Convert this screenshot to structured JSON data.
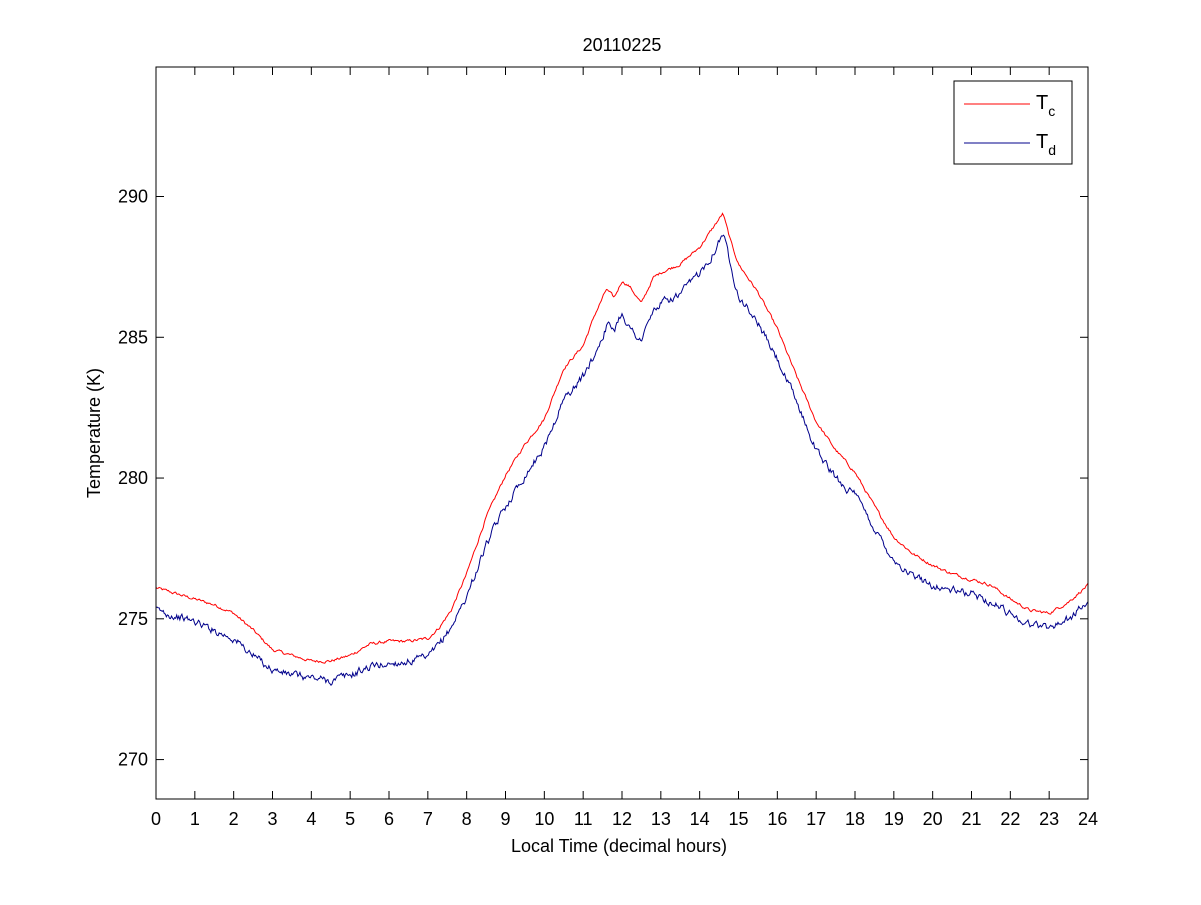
{
  "chart_data": {
    "type": "line",
    "title": "20110225",
    "xlabel": "Local Time (decimal hours)",
    "ylabel": "Temperature (K)",
    "xlim": [
      0,
      24
    ],
    "ylim": [
      268.6,
      294.6
    ],
    "xticks": [
      "0",
      "1",
      "2",
      "3",
      "4",
      "5",
      "6",
      "7",
      "8",
      "9",
      "10",
      "11",
      "12",
      "13",
      "14",
      "15",
      "16",
      "17",
      "18",
      "19",
      "20",
      "21",
      "22",
      "23",
      "24"
    ],
    "yticks": [
      "270",
      "275",
      "280",
      "285",
      "290"
    ],
    "xtick_values": [
      0,
      1,
      2,
      3,
      4,
      5,
      6,
      7,
      8,
      9,
      10,
      11,
      12,
      13,
      14,
      15,
      16,
      17,
      18,
      19,
      20,
      21,
      22,
      23,
      24
    ],
    "ytick_values": [
      270,
      275,
      280,
      285,
      290
    ],
    "grid": false,
    "legend_position": "top-right",
    "series": [
      {
        "legend_main": "T",
        "legend_sub": "c",
        "color": "#ff0000",
        "noise": 0.05,
        "x": [
          0,
          0.5,
          1,
          1.5,
          2,
          2.5,
          3,
          3.5,
          4,
          4.5,
          5,
          5.5,
          6,
          6.5,
          7,
          7.3,
          7.6,
          8,
          8.5,
          9,
          9.5,
          10,
          10.5,
          11,
          11.3,
          11.6,
          11.8,
          12,
          12.2,
          12.5,
          12.8,
          13,
          13.5,
          14,
          14.3,
          14.6,
          14.8,
          15,
          15.5,
          16,
          16.5,
          17,
          17.5,
          18,
          18.5,
          19,
          19.5,
          20,
          20.5,
          21,
          21.5,
          22,
          22.5,
          23,
          23.5,
          24
        ],
        "y": [
          276.1,
          275.9,
          275.7,
          275.5,
          275.2,
          274.6,
          273.9,
          273.7,
          273.5,
          273.5,
          273.7,
          274.1,
          274.2,
          274.2,
          274.3,
          274.7,
          275.3,
          276.6,
          278.6,
          280.1,
          281.2,
          282.1,
          283.9,
          284.7,
          285.8,
          286.7,
          286.4,
          287.0,
          286.8,
          286.2,
          287.1,
          287.3,
          287.6,
          288.2,
          288.8,
          289.4,
          288.4,
          287.6,
          286.6,
          285.3,
          283.6,
          282.0,
          281.0,
          280.2,
          279.0,
          277.9,
          277.3,
          276.9,
          276.6,
          276.4,
          276.2,
          275.7,
          275.3,
          275.2,
          275.6,
          276.2
        ]
      },
      {
        "legend_main": "T",
        "legend_sub": "d",
        "color": "#00008b",
        "noise": 0.13,
        "x": [
          0,
          0.5,
          1,
          1.5,
          2,
          2.5,
          3,
          3.5,
          4,
          4.5,
          5,
          5.5,
          6,
          6.5,
          7,
          7.3,
          7.6,
          8,
          8.5,
          9,
          9.5,
          10,
          10.5,
          11,
          11.3,
          11.6,
          11.8,
          12,
          12.2,
          12.5,
          12.8,
          13,
          13.5,
          14,
          14.3,
          14.6,
          14.8,
          15,
          15.5,
          16,
          16.5,
          17,
          17.5,
          18,
          18.5,
          19,
          19.5,
          20,
          20.5,
          21,
          21.5,
          22,
          22.5,
          23,
          23.5,
          24
        ],
        "y": [
          275.3,
          275.1,
          274.9,
          274.6,
          274.3,
          273.7,
          273.2,
          273.0,
          272.9,
          272.8,
          273.0,
          273.3,
          273.4,
          273.5,
          273.6,
          274.1,
          274.7,
          275.8,
          277.6,
          279.0,
          280.1,
          281.1,
          282.8,
          283.6,
          284.4,
          285.4,
          285.3,
          285.9,
          285.3,
          284.9,
          285.9,
          286.2,
          286.5,
          287.3,
          287.9,
          288.7,
          287.6,
          286.5,
          285.5,
          284.2,
          282.7,
          281.0,
          280.0,
          279.4,
          278.2,
          277.1,
          276.5,
          276.2,
          276.0,
          275.9,
          275.6,
          275.2,
          274.8,
          274.7,
          275.0,
          275.6
        ]
      }
    ]
  }
}
